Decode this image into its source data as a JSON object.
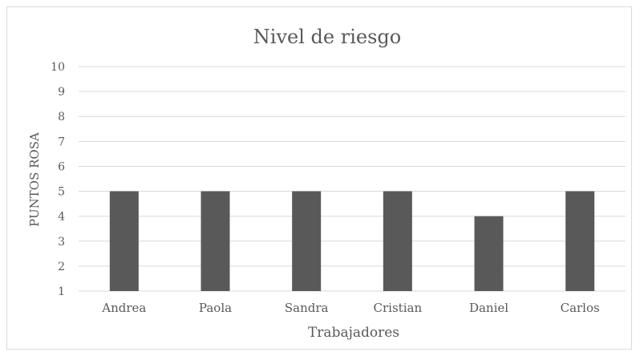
{
  "chart_data": {
    "type": "bar",
    "title": "Nivel de riesgo",
    "xlabel": "Trabajadores",
    "ylabel": "PUNTOS ROSA",
    "categories": [
      "Andrea",
      "Paola",
      "Sandra",
      "Cristian",
      "Daniel",
      "Carlos"
    ],
    "values": [
      5,
      5,
      5,
      5,
      4,
      5
    ],
    "ylim": [
      1,
      10
    ],
    "yticks": [
      "1",
      "2",
      "3",
      "4",
      "5",
      "6",
      "7",
      "8",
      "9",
      "10"
    ],
    "grid": true,
    "legend": "none",
    "bar_color": "#595959",
    "grid_color": "#d9d9d9",
    "text_color": "#595959"
  }
}
